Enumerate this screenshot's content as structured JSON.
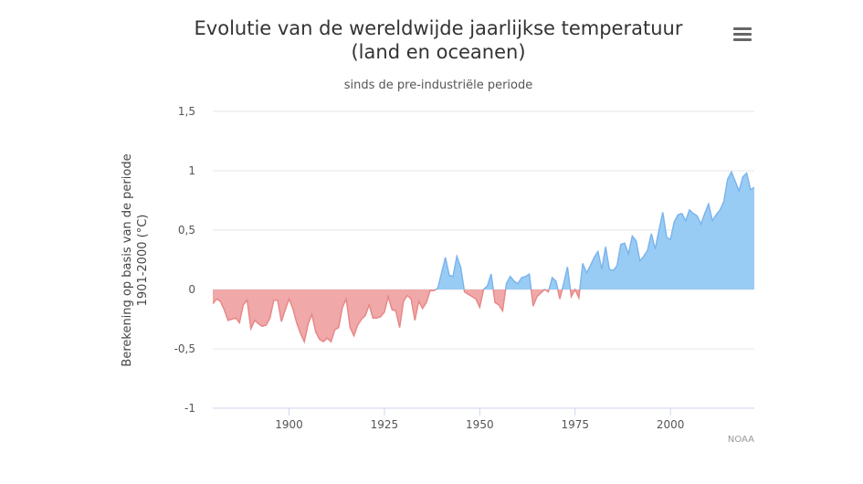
{
  "chart_data": {
    "type": "area",
    "title": [
      "Evolutie van de wereldwijde jaarlijkse temperatuur",
      "(land en oceanen)"
    ],
    "subtitle": "sinds de pre-industriële periode",
    "ylabel": [
      "Berekening op basis van de periode",
      "1901-2000 (°C)"
    ],
    "credits": "NOAA",
    "xlim": [
      1880,
      2022
    ],
    "ylim": [
      -1,
      1.5
    ],
    "yticks": [
      1.5,
      1,
      0.5,
      0,
      -0.5,
      -1
    ],
    "ytick_labels": [
      "1,5",
      "1",
      "0,5",
      "0",
      "-0,5",
      "-1"
    ],
    "xticks": [
      1900,
      1925,
      1950,
      1975,
      2000
    ],
    "xtick_labels": [
      "1900",
      "1925",
      "1950",
      "1975",
      "2000"
    ],
    "grid": true,
    "colors": {
      "positive": "#99ccf5",
      "negative": "#f0a8a8",
      "positive_line": "#7cb5ec",
      "negative_line": "#e88888",
      "grid": "#e6e6e6",
      "axis": "#ccd6eb"
    },
    "series": [
      {
        "x": [
          1880,
          1881,
          1882,
          1883,
          1884,
          1885,
          1886,
          1887,
          1888,
          1889,
          1890,
          1891,
          1892,
          1893,
          1894,
          1895,
          1896,
          1897,
          1898,
          1899,
          1900,
          1901,
          1902,
          1903,
          1904,
          1905,
          1906,
          1907,
          1908,
          1909,
          1910,
          1911,
          1912,
          1913,
          1914,
          1915,
          1916,
          1917,
          1918,
          1919,
          1920,
          1921,
          1922,
          1923,
          1924,
          1925,
          1926,
          1927,
          1928,
          1929,
          1930,
          1931,
          1932,
          1933,
          1934,
          1935,
          1936,
          1937,
          1938,
          1939,
          1940,
          1941,
          1942,
          1943,
          1944,
          1945,
          1946,
          1947,
          1948,
          1949,
          1950,
          1951,
          1952,
          1953,
          1954,
          1955,
          1956,
          1957,
          1958,
          1959,
          1960,
          1961,
          1962,
          1963,
          1964,
          1965,
          1966,
          1967,
          1968,
          1969,
          1970,
          1971,
          1972,
          1973,
          1974,
          1975,
          1976,
          1977,
          1978,
          1979,
          1980,
          1981,
          1982,
          1983,
          1984,
          1985,
          1986,
          1987,
          1988,
          1989,
          1990,
          1991,
          1992,
          1993,
          1994,
          1995,
          1996,
          1997,
          1998,
          1999,
          2000,
          2001,
          2002,
          2003,
          2004,
          2005,
          2006,
          2007,
          2008,
          2009,
          2010,
          2011,
          2012,
          2013,
          2014,
          2015,
          2016,
          2017,
          2018,
          2019,
          2020,
          2021,
          2022
        ],
        "values": [
          -0.12,
          -0.08,
          -0.1,
          -0.17,
          -0.26,
          -0.25,
          -0.24,
          -0.28,
          -0.13,
          -0.09,
          -0.33,
          -0.26,
          -0.29,
          -0.31,
          -0.3,
          -0.24,
          -0.09,
          -0.09,
          -0.27,
          -0.17,
          -0.08,
          -0.16,
          -0.28,
          -0.37,
          -0.44,
          -0.29,
          -0.21,
          -0.36,
          -0.42,
          -0.44,
          -0.41,
          -0.44,
          -0.34,
          -0.32,
          -0.15,
          -0.08,
          -0.32,
          -0.39,
          -0.3,
          -0.25,
          -0.22,
          -0.13,
          -0.24,
          -0.24,
          -0.23,
          -0.19,
          -0.06,
          -0.17,
          -0.18,
          -0.32,
          -0.1,
          -0.05,
          -0.08,
          -0.26,
          -0.1,
          -0.16,
          -0.11,
          -0.01,
          -0.01,
          0.01,
          0.14,
          0.27,
          0.12,
          0.11,
          0.28,
          0.19,
          -0.02,
          -0.04,
          -0.06,
          -0.08,
          -0.15,
          0.0,
          0.03,
          0.13,
          -0.11,
          -0.13,
          -0.18,
          0.05,
          0.11,
          0.07,
          0.05,
          0.1,
          0.11,
          0.13,
          -0.14,
          -0.06,
          -0.03,
          0.0,
          -0.02,
          0.1,
          0.07,
          -0.08,
          0.05,
          0.19,
          -0.06,
          0.0,
          -0.07,
          0.22,
          0.14,
          0.2,
          0.27,
          0.32,
          0.17,
          0.36,
          0.17,
          0.16,
          0.2,
          0.38,
          0.39,
          0.3,
          0.45,
          0.41,
          0.24,
          0.28,
          0.33,
          0.47,
          0.34,
          0.5,
          0.65,
          0.44,
          0.42,
          0.57,
          0.63,
          0.64,
          0.58,
          0.67,
          0.64,
          0.62,
          0.55,
          0.64,
          0.72,
          0.58,
          0.63,
          0.67,
          0.74,
          0.93,
          0.99,
          0.91,
          0.83,
          0.95,
          0.98,
          0.84,
          0.86
        ]
      }
    ]
  }
}
